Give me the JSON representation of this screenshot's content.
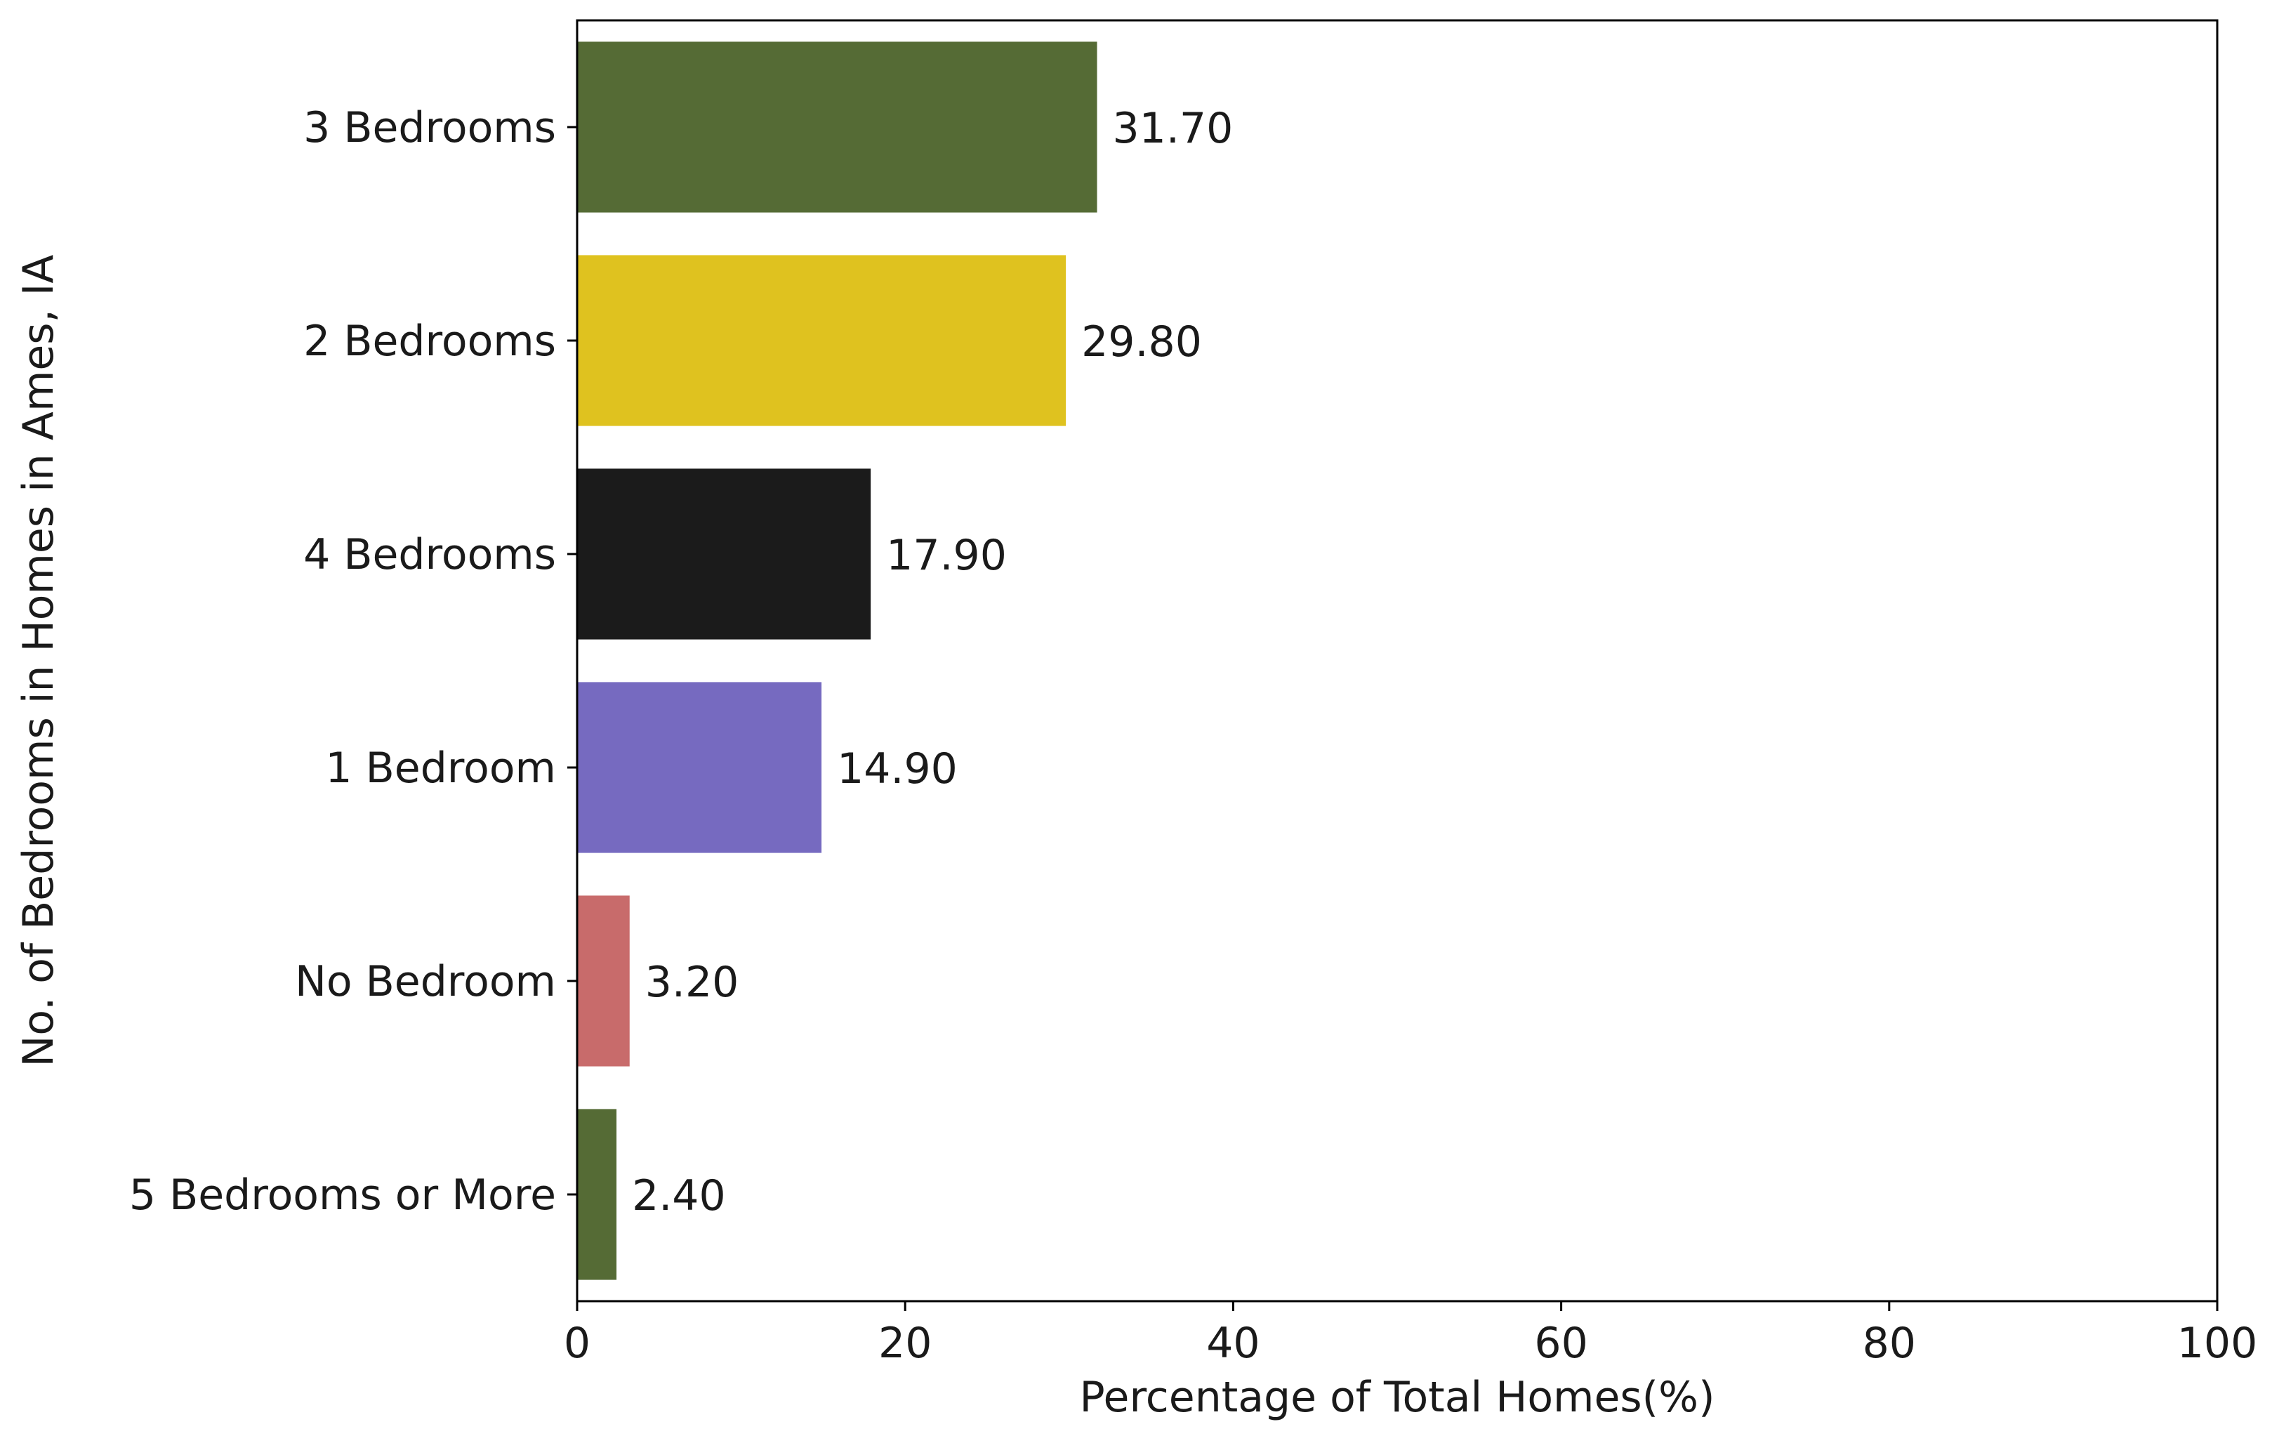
{
  "chart_data": {
    "type": "bar",
    "orientation": "horizontal",
    "title": "",
    "xlabel": "Percentage of Total Homes(%)",
    "ylabel": "No. of Bedrooms in Homes in Ames, IA",
    "xlim": [
      0,
      100
    ],
    "xticks": [
      0,
      20,
      40,
      60,
      80,
      100
    ],
    "categories": [
      "3 Bedrooms",
      "2 Bedrooms",
      "4 Bedrooms",
      "1 Bedroom",
      "No Bedroom",
      "5 Bedrooms or More"
    ],
    "values": [
      31.7,
      29.8,
      17.9,
      14.9,
      3.2,
      2.4
    ],
    "value_labels": [
      "31.70",
      "29.80",
      "17.90",
      "14.90",
      "3.20",
      "2.40"
    ],
    "colors": [
      "#556b35",
      "#dfc21f",
      "#1b1b1b",
      "#766ac0",
      "#c86b6b",
      "#556b35"
    ],
    "grid": false,
    "legend": "none"
  }
}
